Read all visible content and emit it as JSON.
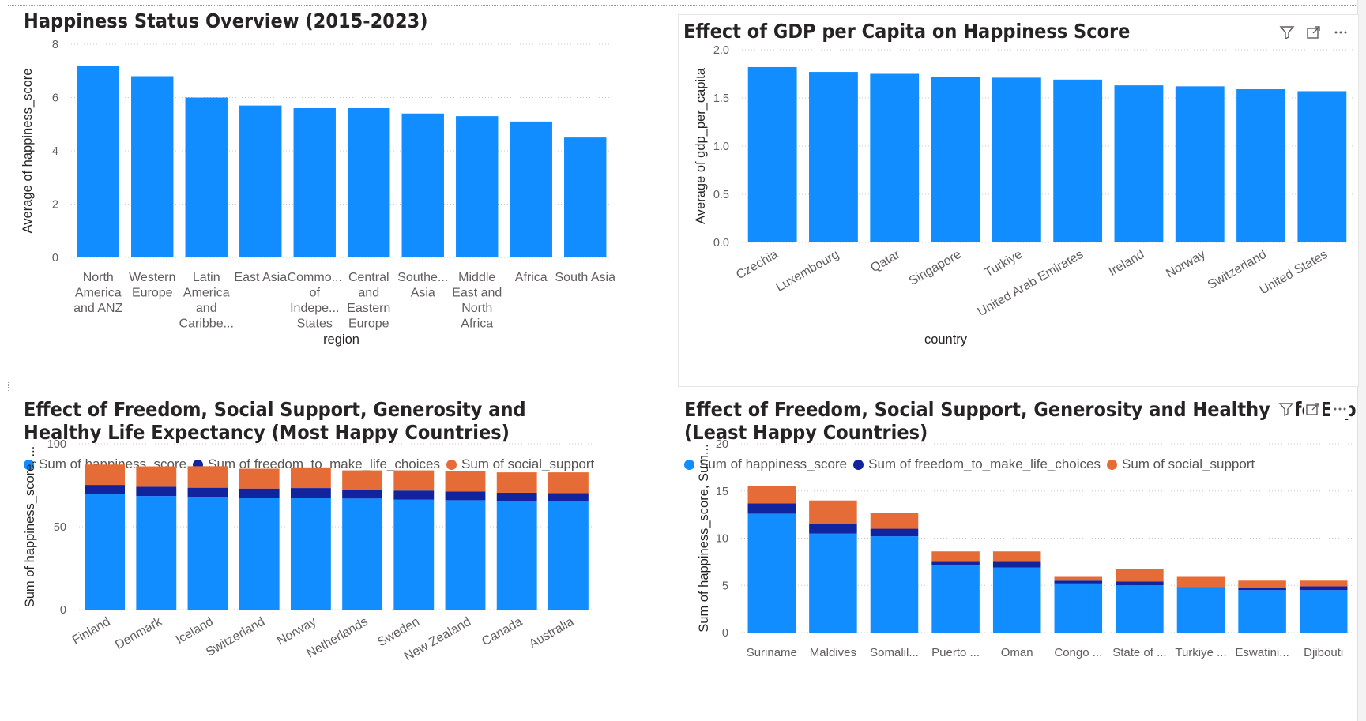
{
  "colors": {
    "happiness": "#118DFF",
    "freedom": "#12239E",
    "social": "#E66C37",
    "grid": "#c8c8c8",
    "axis_text": "#605E5C"
  },
  "icons": [
    "filter-icon",
    "focus-mode-icon",
    "more-options-icon"
  ],
  "chart_data": [
    {
      "type": "bar",
      "title": "Happiness Status Overview (2015-2023)",
      "xlabel": "region",
      "ylabel": "Average of happiness_score",
      "ylim": [
        0,
        8
      ],
      "yticks": [
        "0",
        "2",
        "4",
        "6",
        "8"
      ],
      "categories": [
        "North America and ANZ",
        "Western Europe",
        "Latin America and Caribbe...",
        "East Asia",
        "Commo... of Indepe... States",
        "Central and Eastern Europe",
        "Southe... Asia",
        "Middle East and North Africa",
        "Africa",
        "South Asia"
      ],
      "values": [
        7.2,
        6.8,
        6.0,
        5.7,
        5.6,
        5.6,
        5.4,
        5.3,
        5.1,
        4.5
      ],
      "grid": true
    },
    {
      "type": "bar",
      "title": "Effect of GDP per Capita on Happiness Score",
      "xlabel": "country",
      "ylabel": "Average of gdp_per_capita",
      "ylim": [
        0,
        2.0
      ],
      "yticks": [
        "0.0",
        "0.5",
        "1.0",
        "1.5",
        "2.0"
      ],
      "categories": [
        "Czechia",
        "Luxembourg",
        "Qatar",
        "Singapore",
        "Turkiye",
        "United Arab Emirates",
        "Ireland",
        "Norway",
        "Switzerland",
        "United States"
      ],
      "values": [
        1.82,
        1.77,
        1.75,
        1.72,
        1.71,
        1.69,
        1.63,
        1.62,
        1.59,
        1.57
      ],
      "grid": true
    },
    {
      "type": "bar",
      "stacked": true,
      "title": "Effect of Freedom, Social Support, Generosity and Healthy Life Expectancy (Most Happy Countries)",
      "ylabel": "Sum of happiness_score, ...",
      "ylim": [
        0,
        100
      ],
      "yticks": [
        "0",
        "50",
        "100"
      ],
      "legend": "top-left",
      "categories": [
        "Finland",
        "Denmark",
        "Iceland",
        "Switzerland",
        "Norway",
        "Netherlands",
        "Sweden",
        "New Zealand",
        "Canada",
        "Australia"
      ],
      "series": [
        {
          "name": "Sum of happiness_score",
          "values": [
            69.5,
            68.5,
            68.0,
            67.5,
            67.5,
            67.0,
            66.3,
            66.0,
            65.5,
            65.3
          ]
        },
        {
          "name": "Sum of freedom_to_make_life_choices",
          "values": [
            5.7,
            5.6,
            5.5,
            5.5,
            5.8,
            5.0,
            5.5,
            5.3,
            5.0,
            5.0
          ]
        },
        {
          "name": "Sum of social_support",
          "values": [
            12.3,
            12.3,
            13.0,
            12.0,
            12.5,
            12.0,
            12.2,
            12.5,
            12.3,
            12.5
          ]
        }
      ],
      "grid": true
    },
    {
      "type": "bar",
      "stacked": true,
      "title": "Effect of Freedom, Social Support, Generosity and Healthy Life Exp… (Least Happy Countries)",
      "title_line1": "Effect of Freedom, Social Support, Generosity and Healthy Life Exp",
      "title_line2": "(Least Happy Countries)",
      "ylabel": "Sum of happiness_score, Sum...",
      "ylim": [
        0,
        20
      ],
      "yticks": [
        "0",
        "5",
        "10",
        "15",
        "20"
      ],
      "legend": "top-left",
      "categories": [
        "Suriname",
        "Maldives",
        "Somalil...",
        "Puerto ...",
        "Oman",
        "Congo ...",
        "State of ...",
        "Turkiye ...",
        "Eswatini...",
        "Djibouti"
      ],
      "series": [
        {
          "name": "Sum of happiness_score",
          "values": [
            12.6,
            10.5,
            10.2,
            7.1,
            6.9,
            5.2,
            5.0,
            4.7,
            4.5,
            4.5
          ]
        },
        {
          "name": "Sum of freedom_to_make_life_choices",
          "values": [
            1.1,
            1.0,
            0.8,
            0.4,
            0.6,
            0.3,
            0.4,
            0.1,
            0.2,
            0.4
          ]
        },
        {
          "name": "Sum of social_support",
          "values": [
            1.8,
            2.5,
            1.7,
            1.1,
            1.1,
            0.4,
            1.3,
            1.1,
            0.8,
            0.6
          ]
        }
      ],
      "grid": true
    }
  ]
}
